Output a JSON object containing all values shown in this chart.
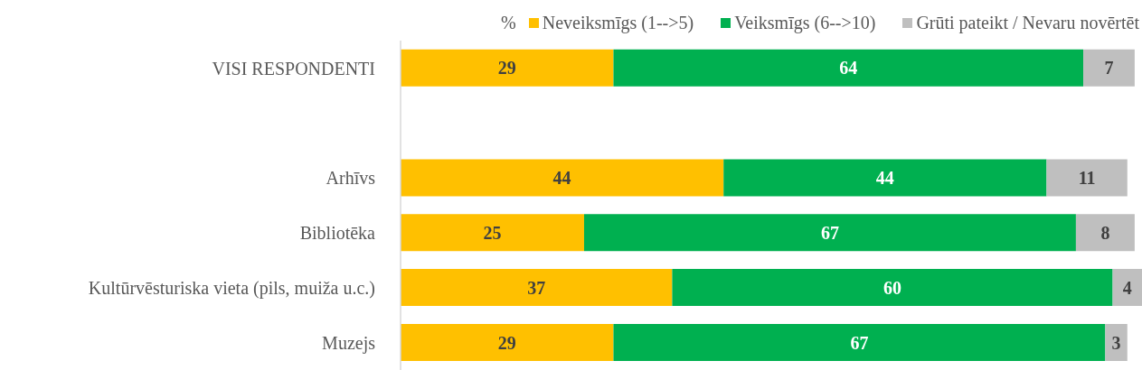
{
  "chart_data": {
    "type": "bar",
    "orientation": "horizontal",
    "stacked": true,
    "data_labels": true,
    "legend": "top right",
    "legend_title": "%",
    "grid": false,
    "categories": [
      "VISI RESPONDENTI",
      null,
      "Arhīvs",
      "Bibliotēka",
      "Kultūrvēsturiska vieta (pils, muiža u.c.)",
      "Muzejs"
    ],
    "series": [
      {
        "name": "Neveiksmīgs (1-->5)",
        "color": "#ffc000",
        "values": [
          29,
          null,
          44,
          25,
          37,
          29
        ]
      },
      {
        "name": "Veiksmīgs (6-->10)",
        "color": "#00b050",
        "values": [
          64,
          null,
          44,
          67,
          60,
          67
        ]
      },
      {
        "name": "Grūti pateikt / Nevaru novērtēt",
        "color": "#bfbfbf",
        "values": [
          7,
          null,
          11,
          8,
          4,
          3
        ]
      }
    ]
  }
}
